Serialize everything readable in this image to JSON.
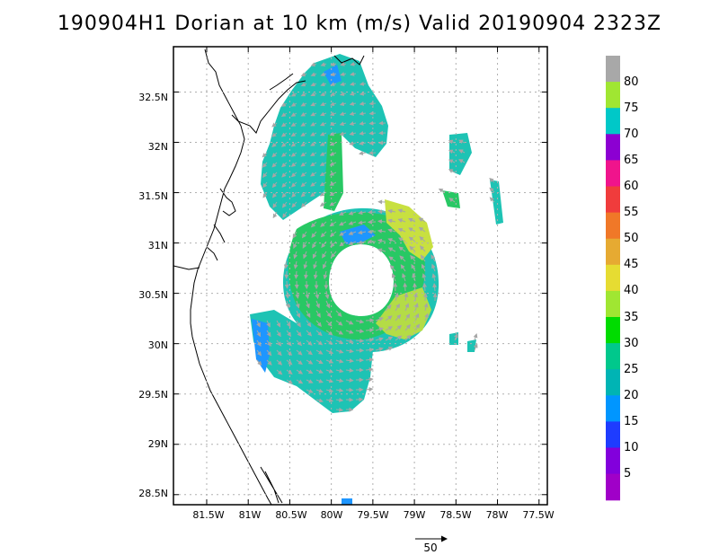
{
  "title": "190904H1 Dorian at 10 km (m/s) Valid 20190904  2323Z",
  "map": {
    "lat_labels": [
      "32.5N",
      "32N",
      "31.5N",
      "31N",
      "30.5N",
      "30N",
      "29.5N",
      "29N",
      "28.5N"
    ],
    "lon_labels": [
      "81.5W",
      "81W",
      "80.5W",
      "80W",
      "79.5W",
      "79W",
      "78.5W",
      "78W",
      "77.5W"
    ],
    "lat_range": [
      28.4,
      32.95
    ],
    "lon_range": [
      81.9,
      77.4
    ],
    "grid": true,
    "storm_center_lat": 30.55,
    "storm_center_lon": 79.55
  },
  "colorbar": {
    "labels": [
      "80",
      "75",
      "70",
      "65",
      "60",
      "55",
      "50",
      "45",
      "40",
      "35",
      "30",
      "25",
      "20",
      "15",
      "10",
      "5"
    ],
    "colors": [
      "#a8a8a8",
      "#a0e632",
      "#00c8c8",
      "#8c00d2",
      "#f0148c",
      "#f03c3c",
      "#f07828",
      "#e6aa32",
      "#e6dc32",
      "#a0e632",
      "#00dc00",
      "#00c88c",
      "#00b4b4",
      "#0096ff",
      "#1e3cff",
      "#8200dc",
      "#a000c8"
    ]
  },
  "reference_vector": {
    "label": "50"
  }
}
